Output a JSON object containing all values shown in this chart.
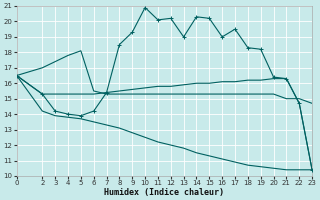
{
  "xlabel": "Humidex (Indice chaleur)",
  "bg_color": "#c8eaea",
  "grid_color": "#ffffff",
  "line_color": "#006060",
  "xlim": [
    0,
    23
  ],
  "ylim": [
    10,
    21
  ],
  "xticks": [
    0,
    2,
    3,
    4,
    5,
    6,
    7,
    8,
    9,
    10,
    11,
    12,
    13,
    14,
    15,
    16,
    17,
    18,
    19,
    20,
    21,
    22,
    23
  ],
  "yticks": [
    10,
    11,
    12,
    13,
    14,
    15,
    16,
    17,
    18,
    19,
    20,
    21
  ],
  "line1_x": [
    0,
    2,
    3,
    4,
    5,
    6,
    7,
    8,
    9,
    10,
    11,
    12,
    13,
    14,
    15,
    16,
    17,
    18,
    19,
    20,
    21,
    22,
    23
  ],
  "line1_y": [
    16.5,
    15.3,
    14.2,
    14.0,
    13.9,
    14.2,
    15.4,
    18.5,
    19.3,
    20.9,
    20.1,
    20.2,
    19.0,
    20.3,
    20.2,
    19.0,
    19.5,
    18.3,
    18.2,
    16.4,
    16.3,
    14.7,
    10.4
  ],
  "line2_x": [
    0,
    2,
    3,
    4,
    5,
    6,
    7,
    8,
    9,
    10,
    11,
    12,
    13,
    14,
    15,
    16,
    17,
    18,
    19,
    20,
    21,
    22,
    23
  ],
  "line2_y": [
    16.5,
    15.3,
    15.3,
    15.3,
    15.3,
    15.3,
    15.4,
    15.5,
    15.6,
    15.7,
    15.8,
    15.8,
    15.9,
    16.0,
    16.0,
    16.1,
    16.1,
    16.2,
    16.2,
    16.3,
    16.3,
    14.7,
    10.4
  ],
  "line3_x": [
    0,
    2,
    3,
    4,
    5,
    6,
    7,
    8,
    9,
    10,
    11,
    12,
    13,
    14,
    15,
    16,
    17,
    18,
    19,
    20,
    21,
    22,
    23
  ],
  "line3_y": [
    16.5,
    17.0,
    17.4,
    17.8,
    18.1,
    15.5,
    15.3,
    15.3,
    15.3,
    15.3,
    15.3,
    15.3,
    15.3,
    15.3,
    15.3,
    15.3,
    15.3,
    15.3,
    15.3,
    15.3,
    15.0,
    15.0,
    14.7
  ],
  "line4_x": [
    0,
    2,
    3,
    4,
    5,
    6,
    7,
    8,
    9,
    10,
    11,
    12,
    13,
    14,
    15,
    16,
    17,
    18,
    19,
    20,
    21,
    22,
    23
  ],
  "line4_y": [
    16.5,
    14.2,
    13.9,
    13.8,
    13.7,
    13.5,
    13.3,
    13.1,
    12.8,
    12.5,
    12.2,
    12.0,
    11.8,
    11.5,
    11.3,
    11.1,
    10.9,
    10.7,
    10.6,
    10.5,
    10.4,
    10.4,
    10.4
  ]
}
